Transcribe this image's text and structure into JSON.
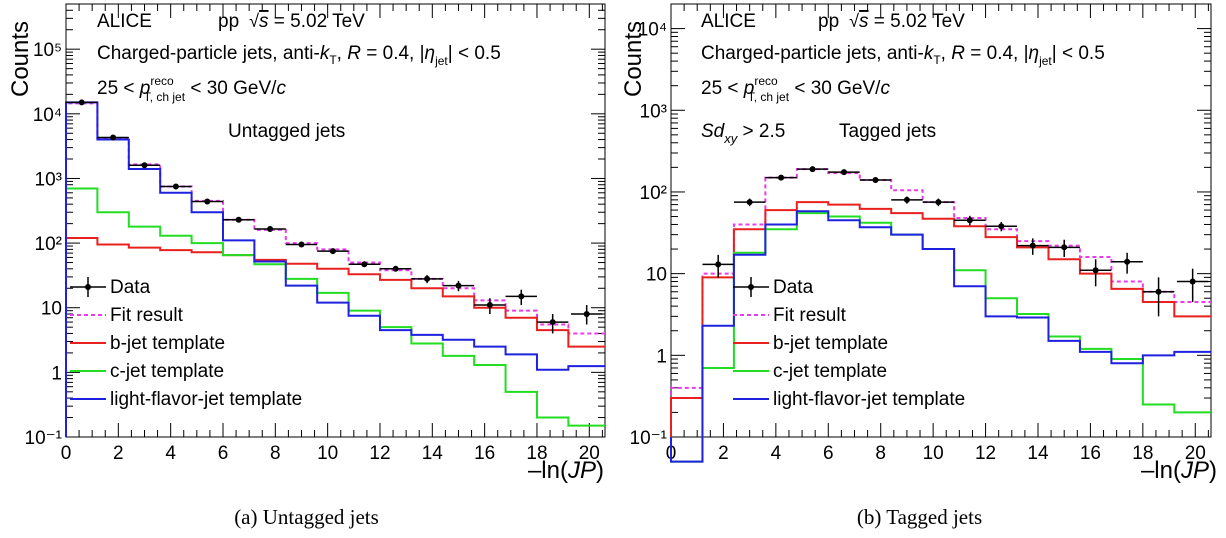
{
  "figure": {
    "caption_a": "(a) Untagged jets",
    "caption_b": "(b) Tagged jets"
  },
  "legend_labels": {
    "data": "Data",
    "fit": "Fit result",
    "b": "b-jet template",
    "c": "c-jet template",
    "light": "light-flavor-jet template"
  },
  "annotation_text": {
    "experiment": "ALICE",
    "collision": "pp",
    "sqrt_s": "s",
    "energy": " = 5.02 TeV",
    "jet_def_prefix": "Charged-particle jets, anti-",
    "k": "k",
    "k_sub": "T",
    "r_sep": ", ",
    "r": "R",
    "r_val": " = 0.4, |",
    "eta": "η",
    "eta_sub": "jet",
    "eta_suffix": "| < 0.5",
    "pt_low": "25 < ",
    "p": "p",
    "pt_sup": "reco",
    "pt_sub": "T, ch jet",
    "pt_high": " < 30 GeV/",
    "c": "c",
    "sd_label": "Sd",
    "sd_sub": "xy",
    "sd_cut": " > 2.5"
  },
  "colors": {
    "data": "#000000",
    "fit": "#e83ce8",
    "b": "#e8201e",
    "c": "#22dd22",
    "light": "#1e22e0"
  },
  "chart_data": [
    {
      "type": "line",
      "panel": "a",
      "subtitle": "Untagged jets",
      "xlabel": "−ln(JP)",
      "ylabel": "Counts",
      "xlim": [
        0,
        20.6
      ],
      "ylim": [
        0.1,
        500000
      ],
      "yscale": "log",
      "x_ticks": [
        0,
        2,
        4,
        6,
        8,
        10,
        12,
        14,
        16,
        18,
        20
      ],
      "y_ticks": [
        0.1,
        1,
        10,
        100,
        1000,
        10000,
        100000
      ],
      "y_tick_labels": [
        "10⁻¹",
        "1",
        "10",
        "10²",
        "10³",
        "10⁴",
        "10⁵"
      ],
      "bin_edges": [
        0,
        1.2,
        2.4,
        3.6,
        4.8,
        6.0,
        7.2,
        8.4,
        9.6,
        10.8,
        12.0,
        13.2,
        14.4,
        15.6,
        16.8,
        18.0,
        19.2,
        20.6
      ],
      "data_points": {
        "x": [
          0.6,
          1.8,
          3.0,
          4.2,
          5.4,
          6.6,
          7.8,
          9.0,
          10.2,
          11.4,
          12.6,
          13.8,
          15.0,
          16.2,
          17.4,
          18.6,
          19.9
        ],
        "y": [
          15000,
          4300,
          1600,
          750,
          440,
          230,
          165,
          95,
          75,
          47,
          40,
          28,
          22,
          11,
          15,
          6,
          8
        ],
        "yerr_low": [
          0,
          0,
          0,
          0,
          0,
          0,
          0,
          0,
          0,
          0,
          0,
          4,
          4,
          3,
          4,
          2,
          2.5
        ],
        "yerr_high": [
          0,
          0,
          0,
          0,
          0,
          0,
          0,
          0,
          0,
          0,
          0,
          4,
          4,
          3,
          4,
          2,
          3
        ]
      },
      "series": [
        {
          "key": "fit",
          "values": [
            14500,
            4200,
            1650,
            750,
            450,
            230,
            160,
            100,
            80,
            50,
            38,
            28,
            20,
            13,
            9,
            5.5,
            4
          ]
        },
        {
          "key": "b",
          "values": [
            120,
            95,
            85,
            78,
            72,
            65,
            55,
            48,
            40,
            33,
            27,
            20,
            15,
            10,
            7,
            4.5,
            2.5
          ]
        },
        {
          "key": "c",
          "values": [
            700,
            300,
            180,
            130,
            100,
            65,
            47,
            28,
            17,
            9,
            5,
            2.8,
            1.8,
            1.3,
            0.5,
            0.2,
            0.15
          ]
        },
        {
          "key": "light",
          "values": [
            15000,
            4000,
            1400,
            600,
            300,
            110,
            52,
            22,
            12,
            7.5,
            4.5,
            3.8,
            3.2,
            2.5,
            1.9,
            1.1,
            1.25
          ]
        }
      ]
    },
    {
      "type": "line",
      "panel": "b",
      "subtitle": "Tagged jets",
      "xlabel": "−ln(JP)",
      "ylabel": "Counts",
      "xlim": [
        0,
        20.6
      ],
      "ylim": [
        0.1,
        20000
      ],
      "yscale": "log",
      "x_ticks": [
        0,
        2,
        4,
        6,
        8,
        10,
        12,
        14,
        16,
        18,
        20
      ],
      "y_ticks": [
        0.1,
        1,
        10,
        100,
        1000,
        10000
      ],
      "y_tick_labels": [
        "10⁻¹",
        "1",
        "10",
        "10²",
        "10³",
        "10⁴"
      ],
      "bin_edges": [
        0,
        1.2,
        2.4,
        3.6,
        4.8,
        6.0,
        7.2,
        8.4,
        9.6,
        10.8,
        12.0,
        13.2,
        14.4,
        15.6,
        16.8,
        18.0,
        19.2,
        20.6
      ],
      "data_points": {
        "x": [
          1.8,
          3.0,
          4.2,
          5.4,
          6.6,
          7.8,
          9.0,
          10.2,
          11.4,
          12.6,
          13.8,
          15.0,
          16.2,
          17.4,
          18.6,
          19.9
        ],
        "y": [
          13,
          75,
          150,
          190,
          175,
          140,
          80,
          75,
          45,
          38,
          22,
          21,
          11,
          14,
          6,
          8
        ],
        "yerr_low": [
          4,
          8,
          10,
          10,
          10,
          10,
          8,
          8,
          6,
          5,
          5,
          5,
          4,
          4,
          3,
          3.5
        ],
        "yerr_high": [
          4,
          8,
          10,
          10,
          10,
          10,
          8,
          8,
          6,
          5,
          5,
          5,
          4,
          4,
          3,
          3.5
        ]
      },
      "series": [
        {
          "key": "fit",
          "values": [
            0.4,
            10,
            40,
            150,
            190,
            170,
            140,
            105,
            75,
            48,
            35,
            25,
            22,
            16,
            8,
            6,
            4.5
          ]
        },
        {
          "key": "b",
          "values": [
            0.3,
            9,
            35,
            60,
            75,
            70,
            62,
            55,
            47,
            38,
            28,
            21,
            15,
            10,
            6.5,
            4.5,
            3
          ]
        },
        {
          "key": "c",
          "values": [
            0,
            0.7,
            18,
            35,
            55,
            50,
            42,
            30,
            20,
            11,
            5,
            3.2,
            1.7,
            1.2,
            0.9,
            0.25,
            0.2
          ]
        },
        {
          "key": "light",
          "values": [
            0,
            2.3,
            17,
            40,
            58,
            45,
            37,
            30,
            20,
            7,
            3,
            2.9,
            1.5,
            1.1,
            0.8,
            1.0,
            1.1
          ]
        }
      ]
    }
  ]
}
